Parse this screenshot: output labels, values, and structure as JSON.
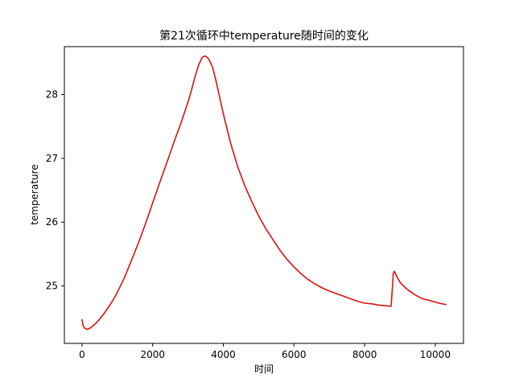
{
  "chart_data": {
    "type": "line",
    "title": "第21次循环中temperature随时间的变化",
    "xlabel": "时间",
    "ylabel": "temperature",
    "xlim": [
      -500,
      10800
    ],
    "ylim": [
      24.1,
      28.75
    ],
    "xticks": [
      0,
      2000,
      4000,
      6000,
      8000,
      10000
    ],
    "yticks": [
      25,
      26,
      27,
      28
    ],
    "grid": false,
    "colors": {
      "line": "#dd1111",
      "axes": "#000000"
    },
    "series": [
      {
        "name": "",
        "x": [
          0,
          30,
          60,
          100,
          150,
          200,
          300,
          400,
          500,
          600,
          700,
          800,
          900,
          1000,
          1200,
          1400,
          1600,
          1800,
          2000,
          2200,
          2400,
          2600,
          2800,
          3000,
          3100,
          3200,
          3300,
          3400,
          3450,
          3500,
          3550,
          3600,
          3700,
          3800,
          3900,
          4000,
          4200,
          4400,
          4600,
          4800,
          5000,
          5200,
          5400,
          5600,
          5800,
          6000,
          6200,
          6400,
          6600,
          6800,
          7000,
          7200,
          7400,
          7600,
          7800,
          8000,
          8200,
          8400,
          8600,
          8750,
          8790,
          8810,
          8840,
          8870,
          8900,
          8950,
          9000,
          9100,
          9200,
          9300,
          9400,
          9500,
          9600,
          9700,
          9800,
          9900,
          10000,
          10100,
          10200,
          10300
        ],
        "y": [
          24.47,
          24.38,
          24.35,
          24.33,
          24.32,
          24.33,
          24.37,
          24.42,
          24.48,
          24.55,
          24.63,
          24.71,
          24.8,
          24.9,
          25.13,
          25.4,
          25.68,
          25.98,
          26.3,
          26.62,
          26.93,
          27.25,
          27.55,
          27.88,
          28.07,
          28.28,
          28.46,
          28.58,
          28.6,
          28.6,
          28.58,
          28.54,
          28.42,
          28.2,
          27.95,
          27.7,
          27.25,
          26.88,
          26.58,
          26.33,
          26.1,
          25.9,
          25.73,
          25.56,
          25.42,
          25.3,
          25.19,
          25.1,
          25.03,
          24.97,
          24.92,
          24.88,
          24.84,
          24.8,
          24.76,
          24.73,
          24.72,
          24.7,
          24.69,
          24.68,
          25.0,
          25.19,
          25.23,
          25.2,
          25.16,
          25.11,
          25.06,
          25.0,
          24.95,
          24.91,
          24.87,
          24.84,
          24.81,
          24.79,
          24.78,
          24.76,
          24.75,
          24.73,
          24.72,
          24.71
        ]
      }
    ]
  }
}
